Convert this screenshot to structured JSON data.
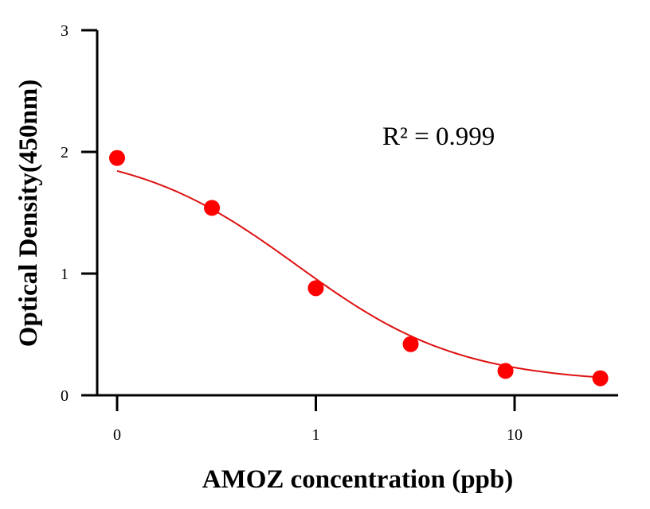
{
  "chart_data": {
    "type": "scatter",
    "xlabel": "AMOZ concentration (ppb)",
    "ylabel": "Optical Density(450nm)",
    "x_scale": "log10",
    "x_ticks": [
      {
        "value": 0.1,
        "label": "0"
      },
      {
        "value": 1,
        "label": "1"
      },
      {
        "value": 10,
        "label": "10"
      }
    ],
    "y_ticks": [
      {
        "value": 0,
        "label": "0"
      },
      {
        "value": 1,
        "label": "1"
      },
      {
        "value": 2,
        "label": "2"
      },
      {
        "value": 3,
        "label": "3"
      }
    ],
    "xlim": [
      0.08,
      40
    ],
    "ylim": [
      0,
      3
    ],
    "grid": false,
    "legend": "none",
    "annotation": "R² = 0.999",
    "series": [
      {
        "x": [
          0.1,
          0.3,
          1,
          3,
          9,
          27
        ],
        "y": [
          1.95,
          1.54,
          0.88,
          0.42,
          0.2,
          0.14
        ],
        "color": "#ff0000"
      }
    ],
    "fit": {
      "type": "4PL",
      "top": 2.04,
      "bottom": 0.1,
      "ec50": 0.8,
      "hill": 1.05,
      "color": "#dd1111"
    }
  }
}
